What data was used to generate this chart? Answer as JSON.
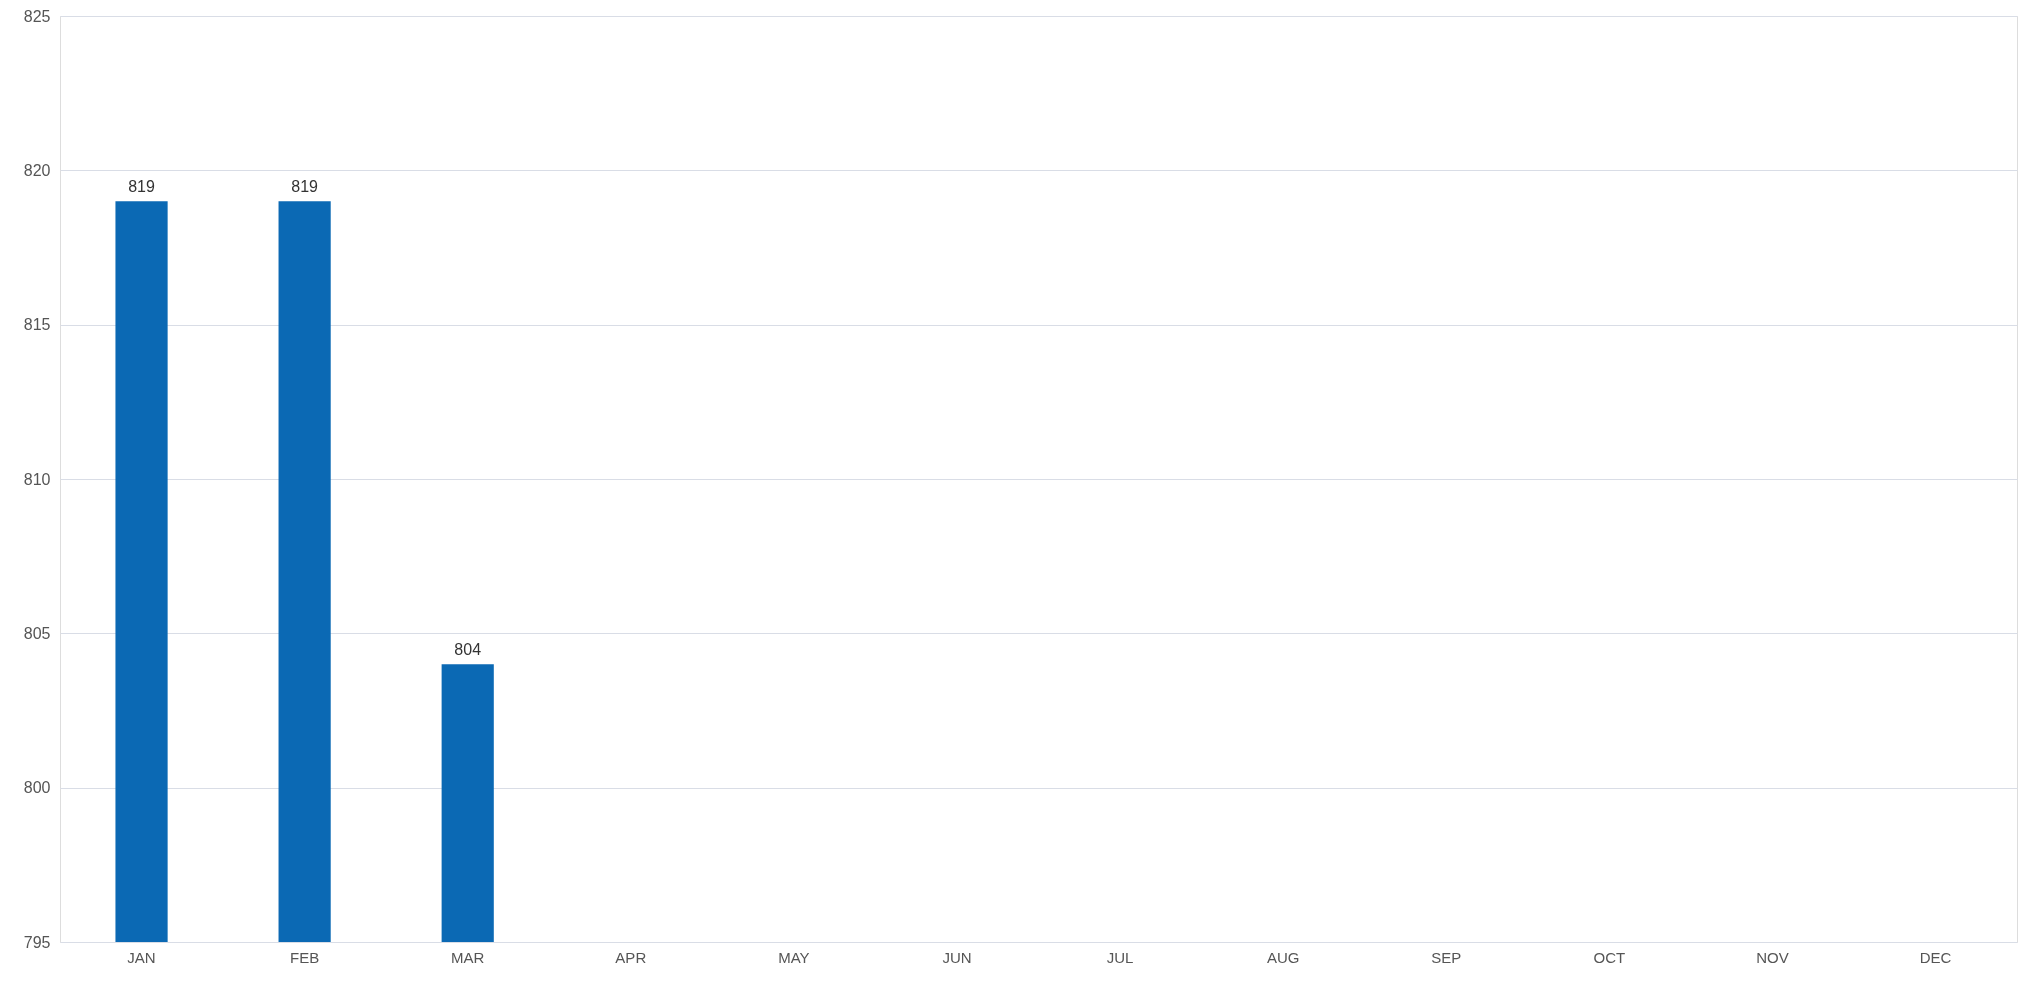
{
  "chart_data": {
    "type": "bar",
    "categories": [
      "JAN",
      "FEB",
      "MAR",
      "APR",
      "MAY",
      "JUN",
      "JUL",
      "AUG",
      "SEP",
      "OCT",
      "NOV",
      "DEC"
    ],
    "values": [
      819,
      819,
      804,
      null,
      null,
      null,
      null,
      null,
      null,
      null,
      null,
      null
    ],
    "color": "#0b69b4",
    "ylim": [
      795,
      825
    ],
    "yticks": [
      795,
      800,
      805,
      810,
      815,
      820,
      825
    ],
    "grid": "y",
    "data_labels": true
  }
}
